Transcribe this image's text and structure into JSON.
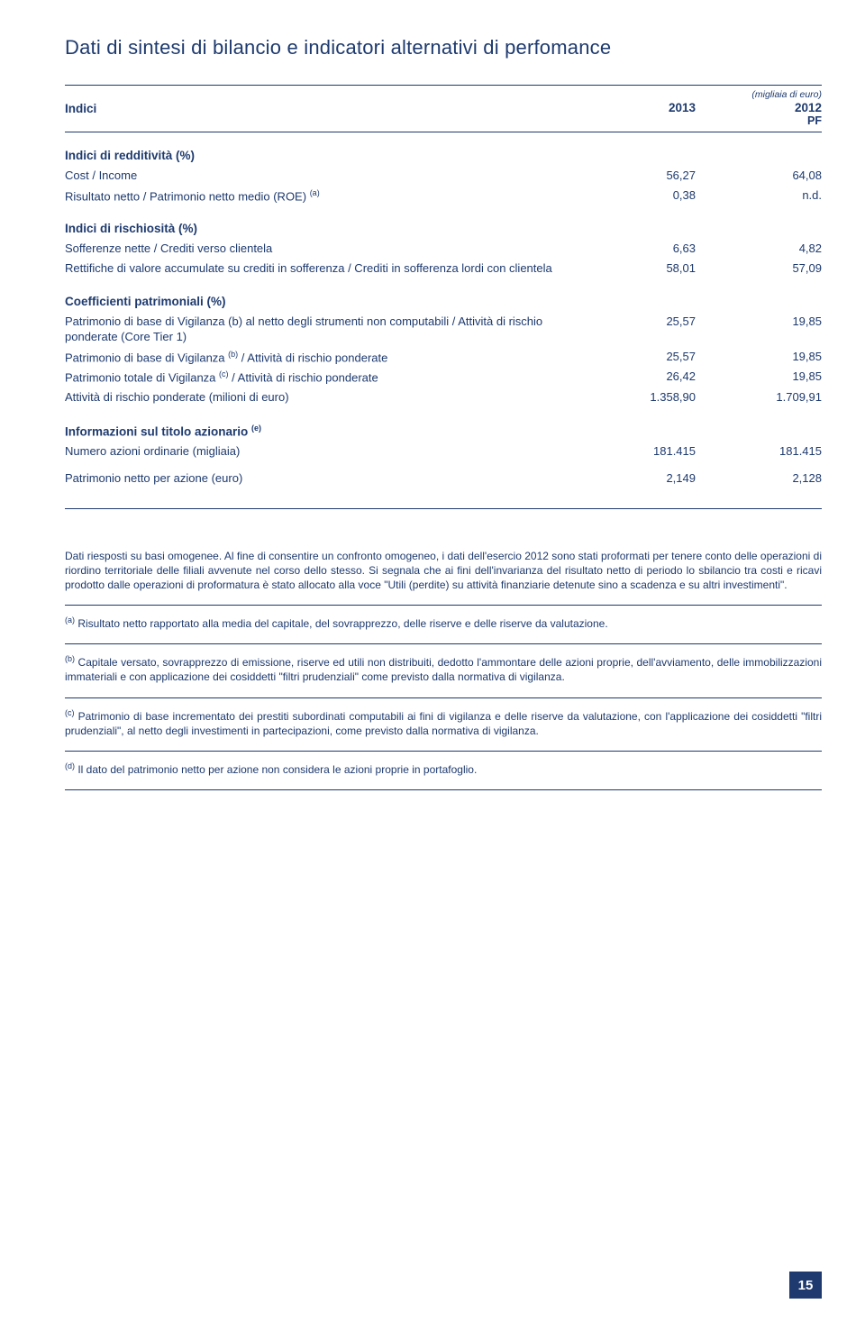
{
  "title": "Dati di sintesi di bilancio e indicatori alternativi di perfomance",
  "header": {
    "unit_label": "(migliaia di euro)",
    "col0": "Indici",
    "col1": "2013",
    "col2a": "2012",
    "col2b": "PF"
  },
  "sections": {
    "redditivita": {
      "title": "Indici di redditività (%)",
      "rows": [
        {
          "label": "Cost / Income",
          "v1": "56,27",
          "v2": "64,08"
        },
        {
          "label_html": "Risultato netto / Patrimonio netto medio (ROE) <span class='sup'>(a)</span>",
          "v1": "0,38",
          "v2": "n.d."
        }
      ]
    },
    "rischiosita": {
      "title": "Indici di rischiosità (%)",
      "rows": [
        {
          "label": "Sofferenze nette / Crediti verso clientela",
          "v1": "6,63",
          "v2": "4,82"
        },
        {
          "label": "Rettifiche di valore accumulate su crediti in sofferenza / Crediti in sofferenza lordi con clientela",
          "v1": "58,01",
          "v2": "57,09"
        }
      ]
    },
    "coefficienti": {
      "title": "Coefficienti patrimoniali (%)",
      "rows": [
        {
          "label": "Patrimonio di base di Vigilanza (b) al netto degli strumenti non computabili / Attività di rischio ponderate (Core Tier 1)",
          "v1": "25,57",
          "v2": "19,85"
        },
        {
          "label_html": "Patrimonio di base di Vigilanza <span class='sup'>(b)</span> / Attività di rischio ponderate",
          "v1": "25,57",
          "v2": "19,85"
        },
        {
          "label_html": "Patrimonio totale di Vigilanza <span class='sup'>(c)</span> / Attività di rischio ponderate",
          "v1": "26,42",
          "v2": "19,85"
        },
        {
          "label": "Attività di rischio ponderate (milioni di  euro)",
          "v1": "1.358,90",
          "v2": "1.709,91"
        }
      ]
    },
    "azionario": {
      "title_html": "Informazioni sul titolo azionario <span class='sup'>(e)</span>",
      "rows": [
        {
          "label": "Numero azioni ordinarie (migliaia)",
          "v1": "181.415",
          "v2": "181.415"
        },
        {
          "label": "Patrimonio netto per azione (euro)",
          "v1": "2,149",
          "v2": "2,128"
        }
      ]
    }
  },
  "notes": {
    "n0": "Dati riesposti su basi omogenee. Al fine di consentire un confronto omogeneo, i dati dell'esercio 2012 sono stati proformati per tenere conto delle operazioni di riordino territoriale delle filiali avvenute nel corso dello stesso. Si segnala che ai fini dell'invarianza del risultato netto di periodo lo sbilancio tra costi e ricavi prodotto dalle operazioni di proformatura è stato allocato alla voce \"Utili (perdite) su attività finanziarie detenute sino a scadenza e su altri investimenti\".",
    "na_html": "<span class='sup'>(a)</span> Risultato netto rapportato alla media del capitale, del sovrapprezzo, delle riserve e delle riserve da valutazione.",
    "nb_html": "<span class='sup'>(b)</span> Capitale versato, sovrapprezzo di emissione, riserve ed utili non distribuiti, dedotto l'ammontare delle azioni proprie, dell'avviamento, delle immobilizzazioni immateriali e con applicazione dei cosiddetti  \"filtri prudenziali\" come previsto dalla normativa di vigilanza.",
    "nc_html": "<span class='sup'>(c)</span> Patrimonio di base incrementato dei prestiti subordinati computabili ai fini di vigilanza e delle riserve da valutazione, con l'applicazione dei cosiddetti \"filtri prudenziali\", al netto degli investimenti in partecipazioni, come previsto dalla normativa di vigilanza.",
    "nd_html": "<span class='sup'>(d)</span> Il dato del patrimonio netto per azione non considera le azioni proprie in portafoglio."
  },
  "page_number": "15"
}
